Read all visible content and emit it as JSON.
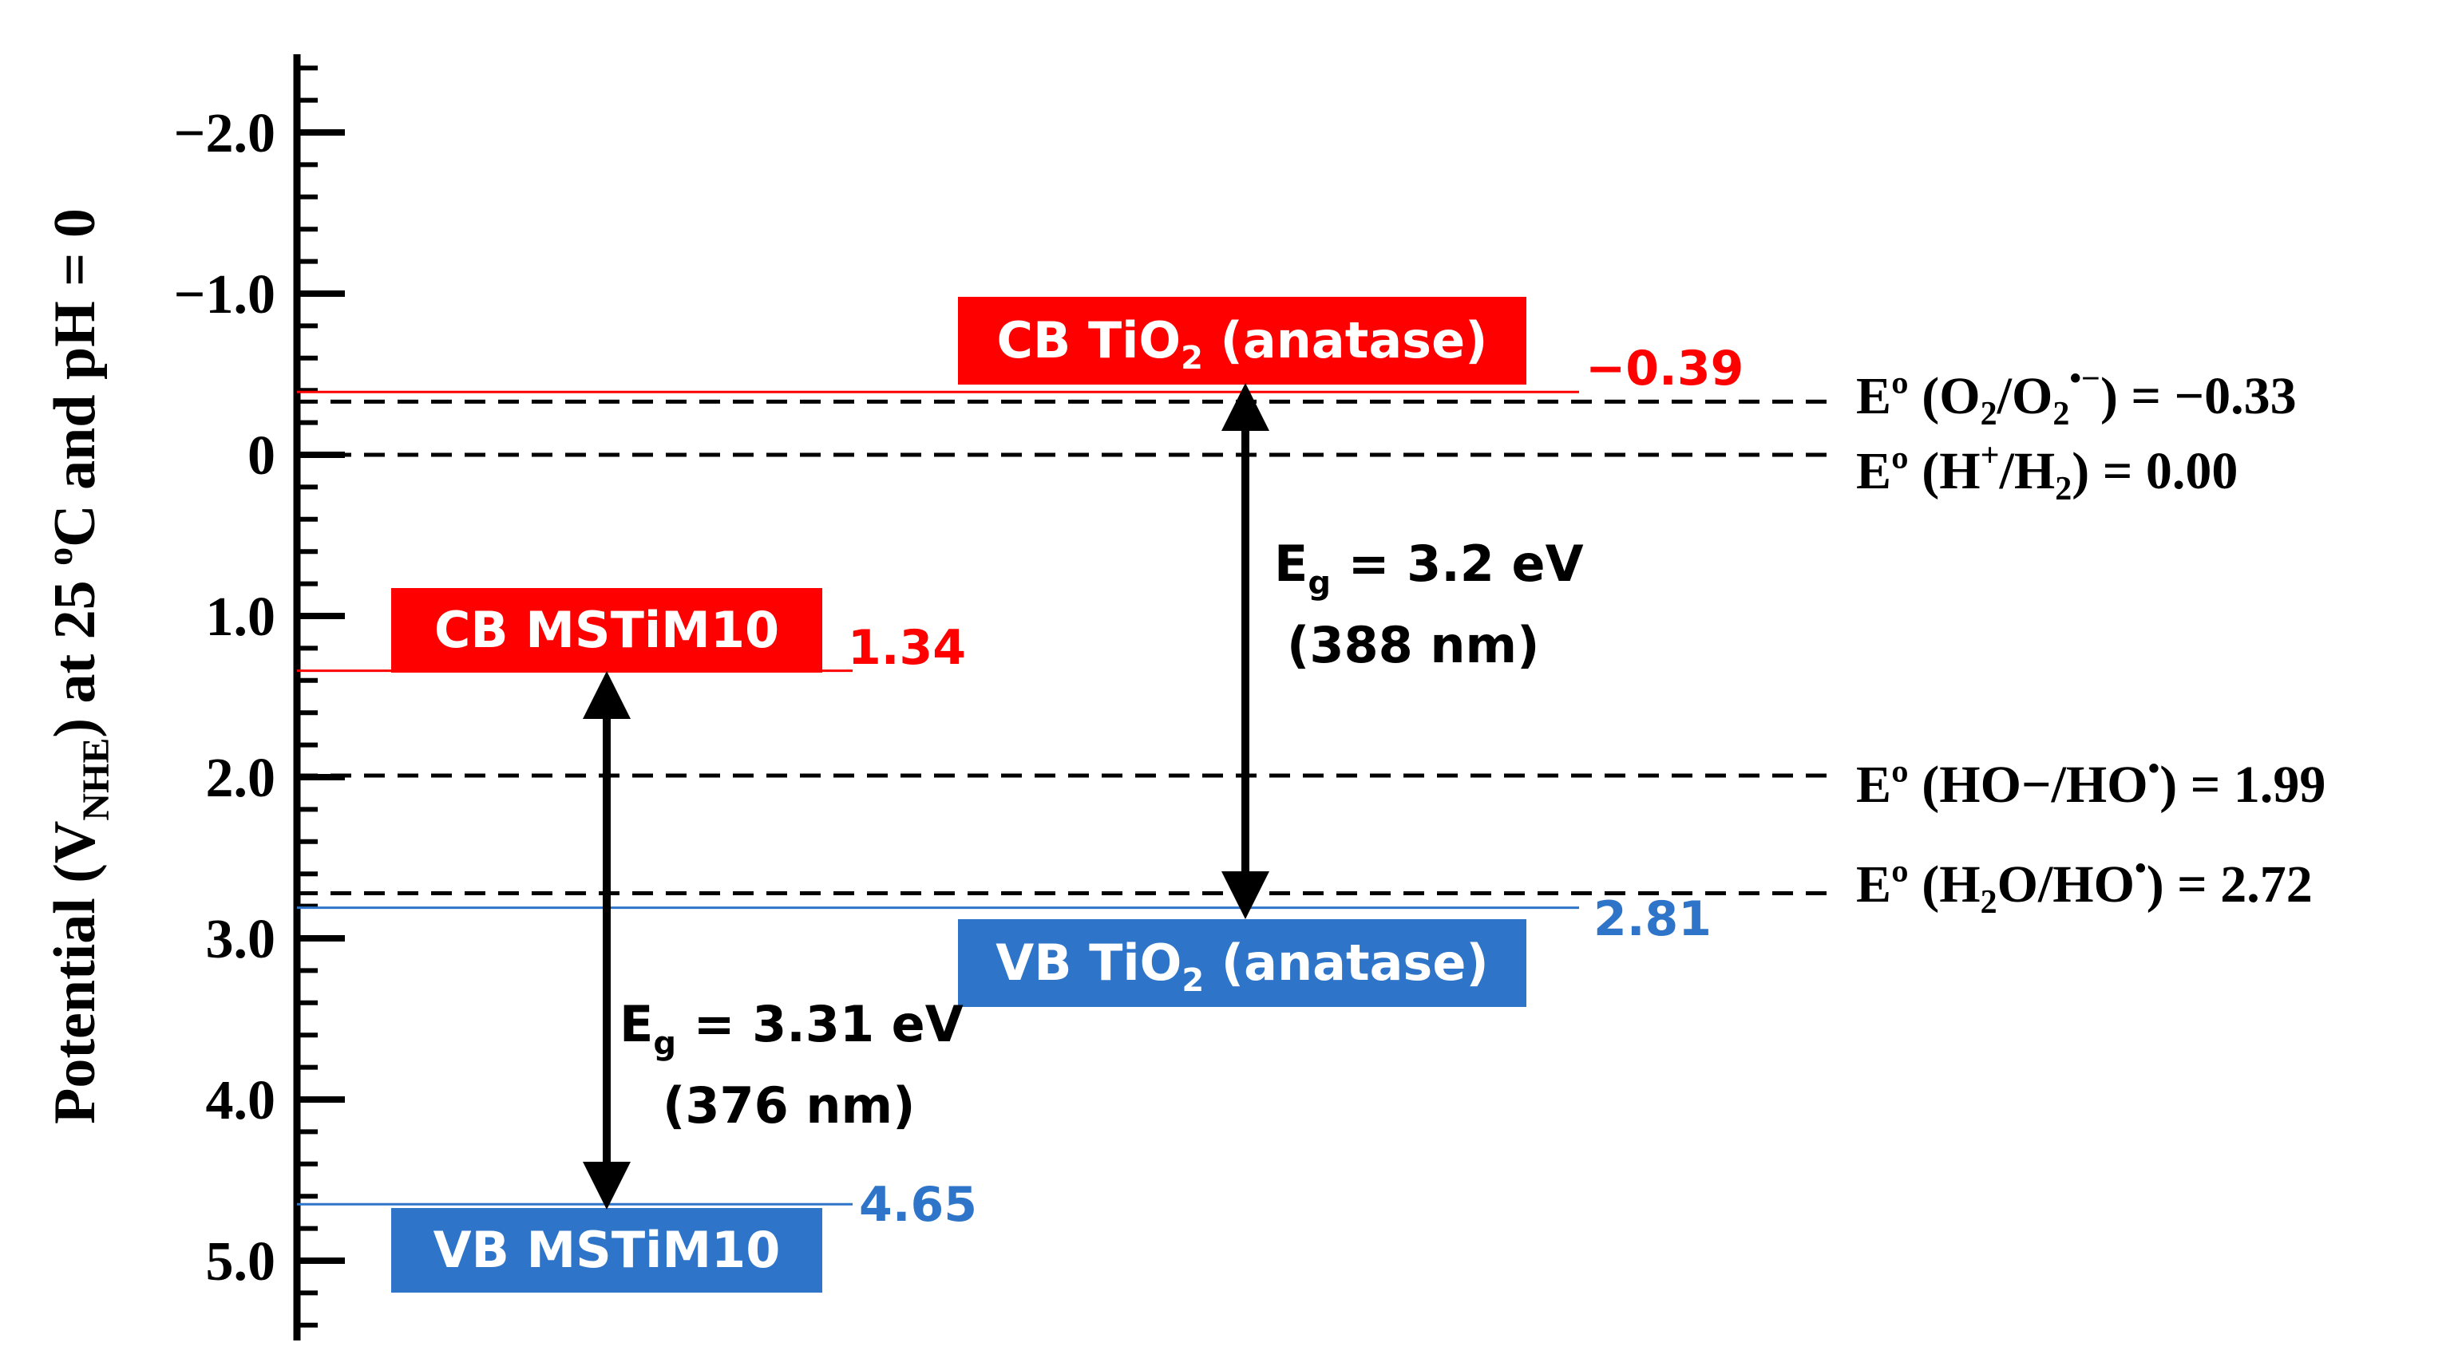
{
  "axis": {
    "ylabel_parts": [
      "Potential ",
      "(V",
      "NHE",
      ") at 25 ",
      "o",
      "C and  pH = 0"
    ],
    "ticks": [
      {
        "value": -2.0,
        "label": "−2.0"
      },
      {
        "value": -1.0,
        "label": "−1.0"
      },
      {
        "value": 0,
        "label": "0"
      },
      {
        "value": 1.0,
        "label": "1.0"
      },
      {
        "value": 2.0,
        "label": "2.0"
      },
      {
        "value": 3.0,
        "label": "3.0"
      },
      {
        "value": 4.0,
        "label": "4.0"
      },
      {
        "value": 5.0,
        "label": "5.0"
      }
    ],
    "minor_step": 0.2,
    "range": [
      -2.5,
      5.5
    ]
  },
  "bands": {
    "tio2_cb": {
      "parts": [
        "CB TiO",
        "2",
        " (anatase)"
      ],
      "value": -0.39,
      "value_label": "−0.39",
      "color": "#ff0000"
    },
    "tio2_vb": {
      "parts": [
        "VB TiO",
        "2",
        " (anatase)"
      ],
      "value": 2.81,
      "value_label": "2.81",
      "color": "#2e75c9"
    },
    "mstim_cb": {
      "label": "CB MSTiM10",
      "value": 1.34,
      "value_label": "1.34",
      "color": "#ff0000"
    },
    "mstim_vb": {
      "label": "VB MSTiM10",
      "value": 4.65,
      "value_label": "4.65",
      "color": "#2e75c9"
    }
  },
  "gaps": {
    "tio2": {
      "eg_symbol": "E",
      "eg_sub": "g",
      "eg_value": " = 3.2 eV",
      "wavelength": "(388 nm)"
    },
    "mstim": {
      "eg_symbol": "E",
      "eg_sub": "g",
      "eg_value": " = 3.31 eV",
      "wavelength": "(376 nm)"
    }
  },
  "potentials": [
    {
      "id": "o2",
      "value": -0.33,
      "label_parts": [
        "Eº (O",
        "2",
        "/O",
        "2",
        "•−",
        ") = −0.33"
      ]
    },
    {
      "id": "h2",
      "value": 0.0,
      "label_parts": [
        "Eº (H",
        "+",
        "/H",
        "2",
        ") = 0.00"
      ]
    },
    {
      "id": "ho",
      "value": 1.99,
      "label_parts": [
        "Eº (HO−/HO",
        "•",
        ") = 1.99"
      ]
    },
    {
      "id": "h2o",
      "value": 2.72,
      "label_parts": [
        "Eº (H",
        "2",
        "O/HO",
        "•",
        ") = 2.72"
      ]
    }
  ],
  "colors": {
    "axis": "#000000",
    "red": "#ff0000",
    "blue": "#2e75c9"
  }
}
